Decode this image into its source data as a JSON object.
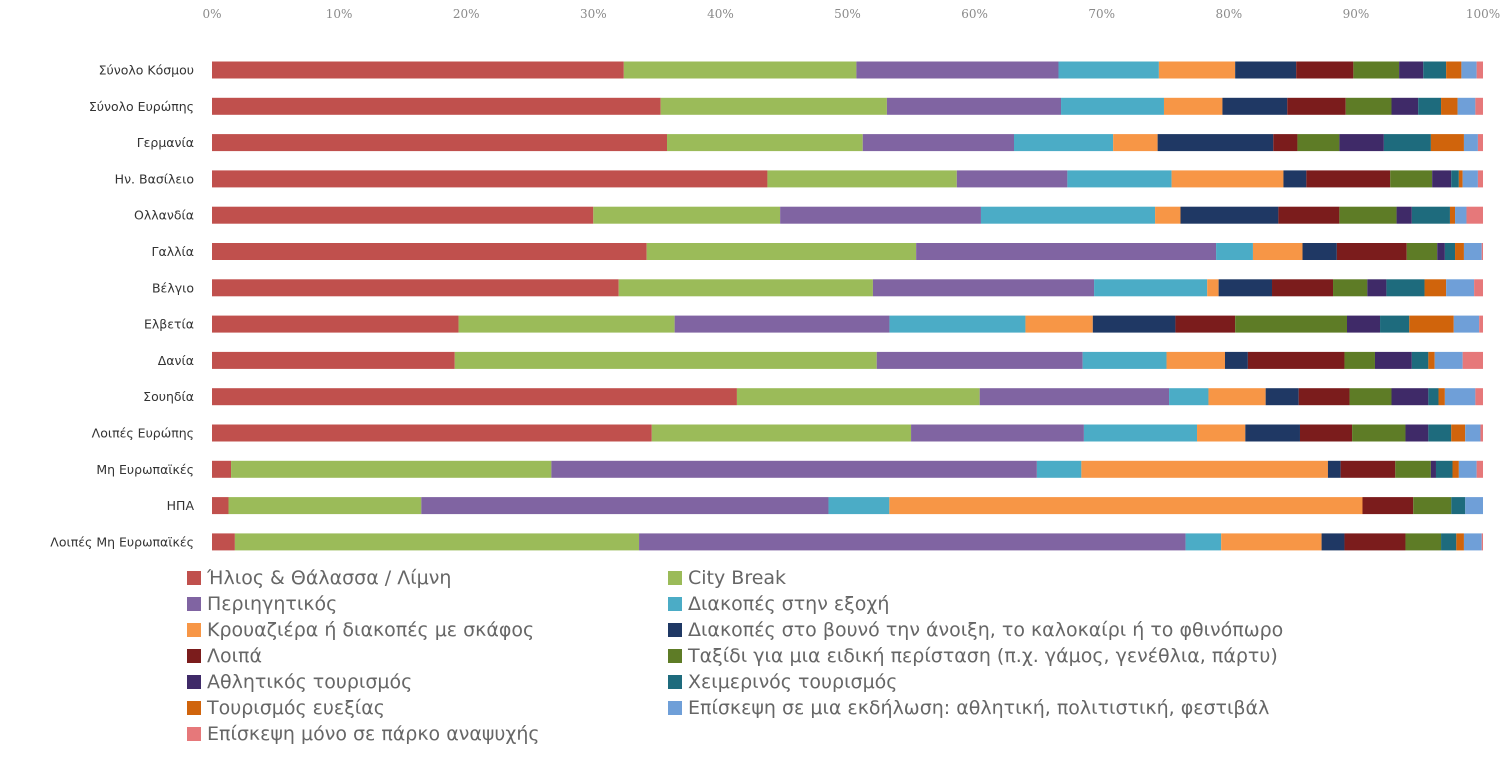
{
  "chart_data": {
    "type": "bar",
    "orientation": "horizontal",
    "stacked": true,
    "percent_stacked": true,
    "x_ticks": [
      "0%",
      "10%",
      "20%",
      "30%",
      "40%",
      "50%",
      "60%",
      "70%",
      "80%",
      "90%",
      "100%"
    ],
    "xlim": [
      0,
      100
    ],
    "grid": false,
    "legend_position": "bottom",
    "categories": [
      "Σύνολο Κόσμου",
      "Σύνολο Ευρώπης",
      "Γερμανία",
      "Ην. Βασίλειο",
      "Ολλανδία",
      "Γαλλία",
      "Βέλγιο",
      "Ελβετία",
      "Δανία",
      "Σουηδία",
      "Λοιπές Ευρώπης",
      "Μη Ευρωπαϊκές",
      "ΗΠΑ",
      "Λοιπές Μη Ευρωπαϊκές"
    ],
    "series": [
      {
        "name": "Ήλιος & Θάλασσα / Λίμνη",
        "color": "#c0504d",
        "values": [
          32.4,
          35.3,
          35.8,
          43.7,
          30.0,
          34.2,
          32.0,
          19.4,
          19.1,
          41.3,
          34.6,
          1.5,
          1.3,
          1.8
        ]
      },
      {
        "name": "City Break",
        "color": "#9bbb59",
        "values": [
          18.3,
          17.8,
          15.4,
          14.9,
          14.7,
          21.2,
          20.0,
          17.0,
          33.2,
          19.1,
          20.4,
          25.2,
          15.2,
          31.8
        ]
      },
      {
        "name": "Περιηγητικός",
        "color": "#8064a2",
        "values": [
          15.9,
          13.7,
          11.9,
          8.7,
          15.8,
          23.6,
          17.4,
          16.9,
          16.2,
          14.9,
          13.6,
          38.2,
          32.1,
          43.0
        ]
      },
      {
        "name": "Διακοπές στην εξοχή",
        "color": "#4bacc6",
        "values": [
          7.9,
          8.1,
          7.8,
          8.2,
          13.7,
          2.9,
          8.9,
          10.7,
          6.6,
          3.1,
          8.9,
          3.5,
          4.8,
          2.8
        ]
      },
      {
        "name": "Κρουαζιέρα ή διακοπές με σκάφος",
        "color": "#f79646",
        "values": [
          6.0,
          4.6,
          3.5,
          8.8,
          2.0,
          3.9,
          0.9,
          5.3,
          4.6,
          4.5,
          3.8,
          19.4,
          37.3,
          7.9
        ]
      },
      {
        "name": "Διακοπές στο βουνό την άνοιξη, το καλοκαίρι ή το φθινόπωρο",
        "color": "#1f3864",
        "values": [
          4.8,
          5.1,
          9.1,
          1.8,
          7.7,
          2.7,
          4.2,
          6.5,
          1.8,
          2.6,
          4.3,
          1.0,
          0.0,
          1.8
        ]
      },
      {
        "name": "Λοιπά",
        "color": "#7b1c1c",
        "values": [
          4.5,
          4.6,
          1.9,
          6.6,
          4.8,
          5.5,
          4.8,
          4.7,
          7.6,
          4.0,
          4.1,
          4.3,
          4.0,
          4.8
        ]
      },
      {
        "name": "Ταξίδι για μια ειδική περίσταση (π.χ. γάμος, γενέθλια, πάρτυ)",
        "color": "#5e7c26",
        "values": [
          3.6,
          3.6,
          3.3,
          3.3,
          4.5,
          2.4,
          2.7,
          8.8,
          2.4,
          3.3,
          4.2,
          2.8,
          3.0,
          2.8
        ]
      },
      {
        "name": "Αθλητικός τουρισμός",
        "color": "#3f2a68",
        "values": [
          1.9,
          2.1,
          3.5,
          1.5,
          1.2,
          0.6,
          1.5,
          2.6,
          2.9,
          2.9,
          1.8,
          0.4,
          0.0,
          0.0
        ]
      },
      {
        "name": "Χειμερινός τουρισμός",
        "color": "#1e6b7d",
        "values": [
          1.8,
          1.8,
          3.7,
          0.6,
          3.0,
          0.8,
          3.0,
          2.3,
          1.3,
          0.8,
          1.8,
          1.3,
          1.1,
          1.2
        ]
      },
      {
        "name": "Τουρισμός ευεξίας",
        "color": "#d0640c",
        "values": [
          1.2,
          1.3,
          2.6,
          0.3,
          0.4,
          0.7,
          1.7,
          3.5,
          0.5,
          0.5,
          1.1,
          0.5,
          0.0,
          0.6
        ]
      },
      {
        "name": "Επίσκεψη σε μια εκδήλωση: αθλητική, πολιτιστική, φεστιβάλ",
        "color": "#6f9fd8",
        "values": [
          1.2,
          1.4,
          1.1,
          1.2,
          0.9,
          1.4,
          2.2,
          2.0,
          2.2,
          2.4,
          1.2,
          1.4,
          1.4,
          1.4
        ]
      },
      {
        "name": "Επίσκεψη μόνο σε πάρκο αναψυχής",
        "color": "#e6787a",
        "values": [
          0.5,
          0.6,
          0.4,
          0.4,
          1.3,
          0.1,
          0.7,
          0.3,
          1.6,
          0.6,
          0.2,
          0.5,
          0.0,
          0.1
        ]
      }
    ]
  }
}
